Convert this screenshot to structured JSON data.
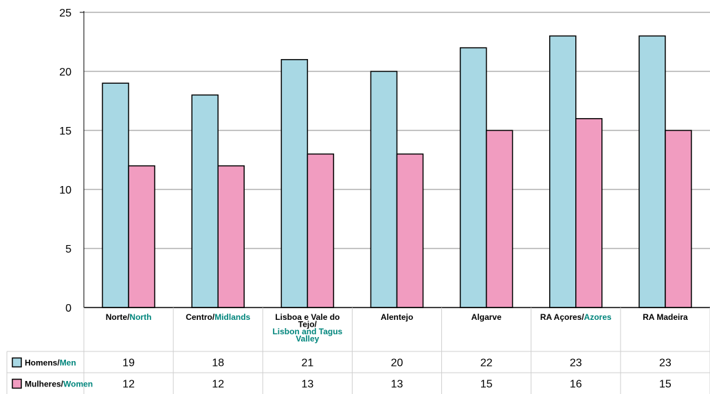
{
  "chart_data": {
    "type": "bar",
    "categories": [
      {
        "pt": "Norte/",
        "en": "North"
      },
      {
        "pt": "Centro/",
        "en": "Midlands"
      },
      {
        "pt": "Lisboa e Vale do Tejo/",
        "en": "Lisbon and Tagus Valley"
      },
      {
        "pt": "Alentejo",
        "en": ""
      },
      {
        "pt": "Algarve",
        "en": ""
      },
      {
        "pt": "RA Açores/",
        "en": "Azores"
      },
      {
        "pt": "RA Madeira",
        "en": ""
      }
    ],
    "series": [
      {
        "name_pt": "Homens/",
        "name_en": "Men",
        "color": "#a8d8e4",
        "values": [
          19,
          18,
          21,
          20,
          22,
          23,
          23
        ]
      },
      {
        "name_pt": "Mulheres/",
        "name_en": "Women",
        "color": "#f19cc0",
        "values": [
          12,
          12,
          13,
          13,
          15,
          16,
          15
        ]
      }
    ],
    "yticks": [
      0,
      5,
      10,
      15,
      20,
      25
    ],
    "ylim": [
      0,
      25
    ],
    "grid": true,
    "data_table": true
  }
}
